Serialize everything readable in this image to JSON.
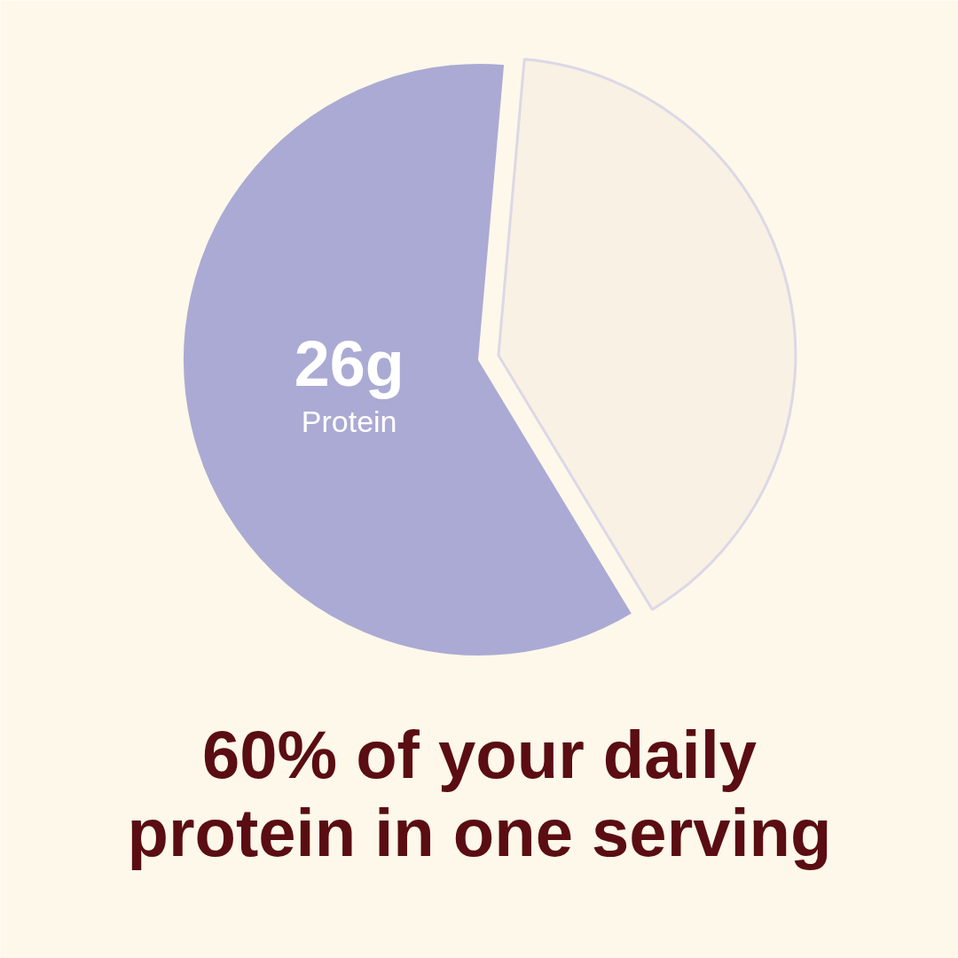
{
  "chart_data": {
    "type": "pie",
    "title": "60% of your daily protein in one serving",
    "categories": [
      "Protein",
      null
    ],
    "values": [
      26,
      17.3
    ],
    "colors": [
      "#abaad4",
      "#f8f1e4"
    ],
    "value_labels": [
      "26g",
      null
    ]
  }
}
